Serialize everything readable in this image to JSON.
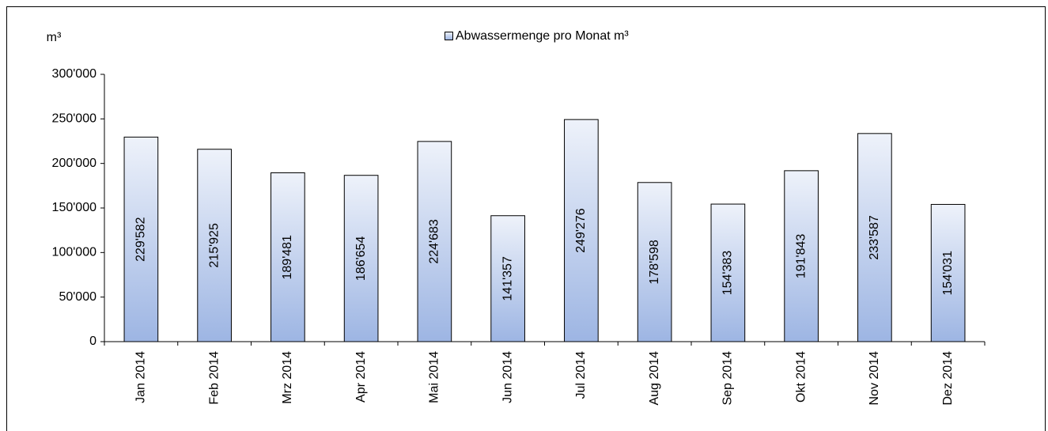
{
  "chart_data": {
    "type": "bar",
    "y_label": "m³",
    "categories": [
      "Jan 2014",
      "Feb 2014",
      "Mrz 2014",
      "Apr 2014",
      "Mai 2014",
      "Jun 2014",
      "Jul 2014",
      "Aug 2014",
      "Sep 2014",
      "Okt 2014",
      "Nov 2014",
      "Dez 2014"
    ],
    "series": [
      {
        "name": "Abwassermenge pro Monat m³",
        "color": "#9db5e3",
        "values": [
          229582,
          215925,
          189481,
          186654,
          224683,
          141357,
          249276,
          178598,
          154383,
          191843,
          233587,
          154031
        ],
        "value_labels": [
          "229'582",
          "215'925",
          "189'481",
          "186'654",
          "224'683",
          "141'357",
          "249'276",
          "178'598",
          "154'383",
          "191'843",
          "233'587",
          "154'031"
        ]
      }
    ],
    "ylim": [
      0,
      300000
    ],
    "yticks": [
      0,
      {
        "value": 50000,
        "label": "50'000"
      },
      {
        "value": 100000,
        "label": "100'000"
      },
      {
        "value": 150000,
        "label": "150'000"
      },
      {
        "value": 200000,
        "label": "200'000"
      },
      {
        "value": 250000,
        "label": "250'000"
      },
      {
        "value": 300000,
        "label": "300'000"
      }
    ],
    "legend": "top",
    "grid": false
  }
}
